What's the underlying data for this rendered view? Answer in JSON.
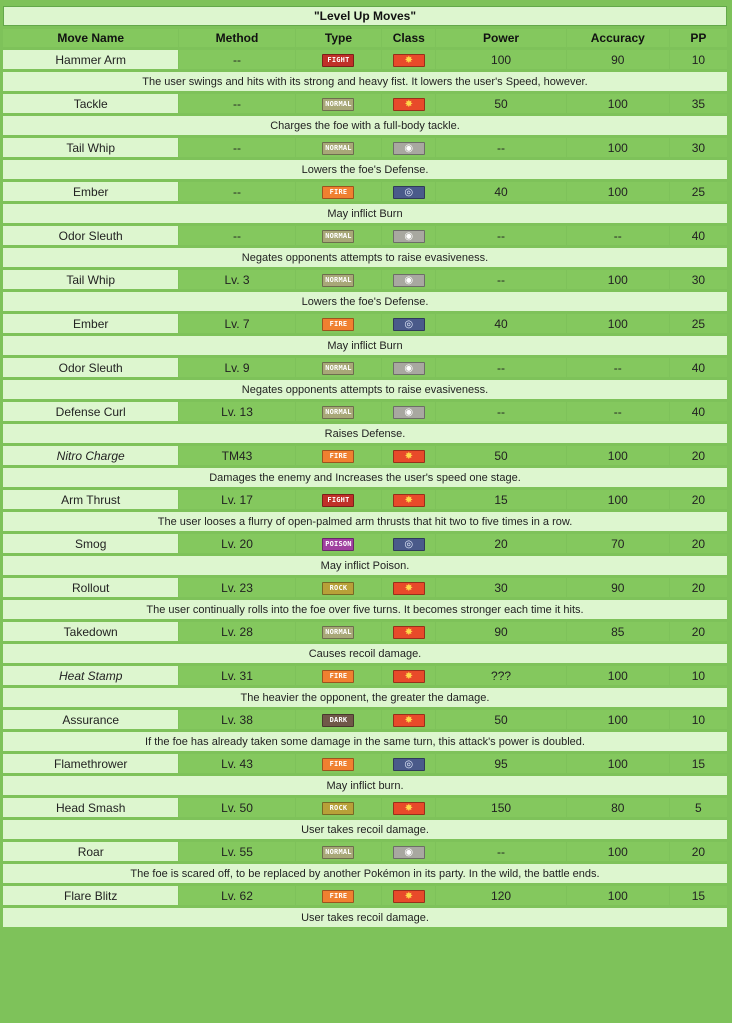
{
  "title": "\"Level Up Moves\"",
  "headers": [
    "Move Name",
    "Method",
    "Type",
    "Class",
    "Power",
    "Accuracy",
    "PP"
  ],
  "type_colors": {
    "FIGHT": "#c03028",
    "NORMAL": "#a8a878",
    "FIRE": "#f08030",
    "POISON": "#a040a0",
    "ROCK": "#b8a038",
    "DARK": "#705848"
  },
  "class_styles": {
    "physical": {
      "bg": "#e84a2a",
      "fg": "#ffd84a",
      "glyph": "✸",
      "icon": "physical-icon"
    },
    "status": {
      "bg": "#a8a8a0",
      "fg": "#ffffff",
      "glyph": "◉",
      "icon": "status-icon"
    },
    "special": {
      "bg": "#4a5a8a",
      "fg": "#e8eeff",
      "glyph": "◎",
      "icon": "special-icon"
    }
  },
  "moves": [
    {
      "name": "Hammer Arm",
      "italic": false,
      "method": "--",
      "type": "FIGHT",
      "class": "physical",
      "power": "100",
      "accuracy": "90",
      "pp": "10",
      "desc": "The user swings and hits with its strong and heavy fist. It lowers the user's Speed, however."
    },
    {
      "name": "Tackle",
      "italic": false,
      "method": "--",
      "type": "NORMAL",
      "class": "physical",
      "power": "50",
      "accuracy": "100",
      "pp": "35",
      "desc": "Charges the foe with a full-body tackle."
    },
    {
      "name": "Tail Whip",
      "italic": false,
      "method": "--",
      "type": "NORMAL",
      "class": "status",
      "power": "--",
      "accuracy": "100",
      "pp": "30",
      "desc": "Lowers the foe's Defense."
    },
    {
      "name": "Ember",
      "italic": false,
      "method": "--",
      "type": "FIRE",
      "class": "special",
      "power": "40",
      "accuracy": "100",
      "pp": "25",
      "desc": "May inflict Burn"
    },
    {
      "name": "Odor Sleuth",
      "italic": false,
      "method": "--",
      "type": "NORMAL",
      "class": "status",
      "power": "--",
      "accuracy": "--",
      "pp": "40",
      "desc": "Negates opponents attempts to raise evasiveness."
    },
    {
      "name": "Tail Whip",
      "italic": false,
      "method": "Lv. 3",
      "type": "NORMAL",
      "class": "status",
      "power": "--",
      "accuracy": "100",
      "pp": "30",
      "desc": "Lowers the foe's Defense."
    },
    {
      "name": "Ember",
      "italic": false,
      "method": "Lv. 7",
      "type": "FIRE",
      "class": "special",
      "power": "40",
      "accuracy": "100",
      "pp": "25",
      "desc": "May inflict Burn"
    },
    {
      "name": "Odor Sleuth",
      "italic": false,
      "method": "Lv. 9",
      "type": "NORMAL",
      "class": "status",
      "power": "--",
      "accuracy": "--",
      "pp": "40",
      "desc": "Negates opponents attempts to raise evasiveness."
    },
    {
      "name": "Defense Curl",
      "italic": false,
      "method": "Lv. 13",
      "type": "NORMAL",
      "class": "status",
      "power": "--",
      "accuracy": "--",
      "pp": "40",
      "desc": "Raises Defense."
    },
    {
      "name": "Nitro Charge",
      "italic": true,
      "method": "TM43",
      "type": "FIRE",
      "class": "physical",
      "power": "50",
      "accuracy": "100",
      "pp": "20",
      "desc": "Damages the enemy and Increases the user's speed one stage."
    },
    {
      "name": "Arm Thrust",
      "italic": false,
      "method": "Lv. 17",
      "type": "FIGHT",
      "class": "physical",
      "power": "15",
      "accuracy": "100",
      "pp": "20",
      "desc": "The user looses a flurry of open-palmed arm thrusts that hit two to five times in a row."
    },
    {
      "name": "Smog",
      "italic": false,
      "method": "Lv. 20",
      "type": "POISON",
      "class": "special",
      "power": "20",
      "accuracy": "70",
      "pp": "20",
      "desc": "May inflict Poison."
    },
    {
      "name": "Rollout",
      "italic": false,
      "method": "Lv. 23",
      "type": "ROCK",
      "class": "physical",
      "power": "30",
      "accuracy": "90",
      "pp": "20",
      "desc": "The user continually rolls into the foe over five turns. It becomes stronger each time it hits."
    },
    {
      "name": "Takedown",
      "italic": false,
      "method": "Lv. 28",
      "type": "NORMAL",
      "class": "physical",
      "power": "90",
      "accuracy": "85",
      "pp": "20",
      "desc": "Causes recoil damage."
    },
    {
      "name": "Heat Stamp",
      "italic": true,
      "method": "Lv. 31",
      "type": "FIRE",
      "class": "physical",
      "power": "???",
      "accuracy": "100",
      "pp": "10",
      "desc": "The heavier the opponent, the greater the damage."
    },
    {
      "name": "Assurance",
      "italic": false,
      "method": "Lv. 38",
      "type": "DARK",
      "class": "physical",
      "power": "50",
      "accuracy": "100",
      "pp": "10",
      "desc": "If the foe has already taken some damage in the same turn, this attack's power is doubled."
    },
    {
      "name": "Flamethrower",
      "italic": false,
      "method": "Lv. 43",
      "type": "FIRE",
      "class": "special",
      "power": "95",
      "accuracy": "100",
      "pp": "15",
      "desc": "May inflict burn."
    },
    {
      "name": "Head Smash",
      "italic": false,
      "method": "Lv. 50",
      "type": "ROCK",
      "class": "physical",
      "power": "150",
      "accuracy": "80",
      "pp": "5",
      "desc": "User takes recoil damage."
    },
    {
      "name": "Roar",
      "italic": false,
      "method": "Lv. 55",
      "type": "NORMAL",
      "class": "status",
      "power": "--",
      "accuracy": "100",
      "pp": "20",
      "desc": "The foe is scared off, to be replaced by another Pokémon in its party. In the wild, the battle ends."
    },
    {
      "name": "Flare Blitz",
      "italic": false,
      "method": "Lv. 62",
      "type": "FIRE",
      "class": "physical",
      "power": "120",
      "accuracy": "100",
      "pp": "15",
      "desc": "User takes recoil damage."
    }
  ]
}
